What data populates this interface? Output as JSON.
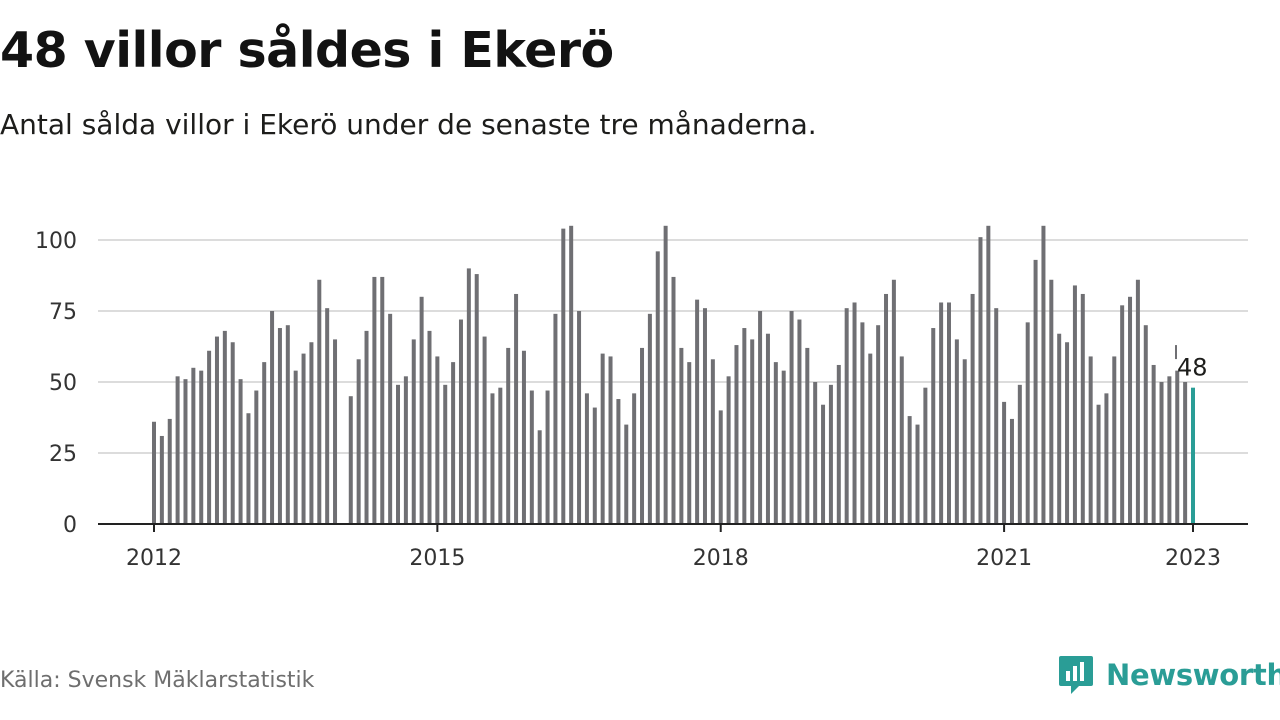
{
  "header": {
    "title": "48 villor såldes i Ekerö",
    "subtitle": "Antal sålda villor i Ekerö under de senaste tre månaderna."
  },
  "footer": {
    "source": "Källa: Svensk Mäklarstatistik",
    "brand": "Newsworthy"
  },
  "colors": {
    "bar": "#6f6f73",
    "highlight": "#2a9d96",
    "grid": "#dcdcdc",
    "axis": "#222222",
    "brand": "#2a9d96"
  },
  "chart_data": {
    "type": "bar",
    "x_start": "2012-01",
    "x_end": "2022-12",
    "x_ticks": [
      "2012",
      "2015",
      "2018",
      "2021",
      "2023"
    ],
    "y_ticks": [
      0,
      25,
      50,
      75,
      100
    ],
    "ylim": [
      0,
      105
    ],
    "grid": true,
    "highlight_label": "48",
    "values": [
      36,
      31,
      37,
      52,
      51,
      55,
      54,
      61,
      66,
      68,
      64,
      51,
      39,
      47,
      57,
      75,
      69,
      70,
      54,
      60,
      64,
      86,
      76,
      65,
      null,
      45,
      58,
      68,
      87,
      87,
      74,
      49,
      52,
      65,
      80,
      68,
      59,
      49,
      57,
      72,
      90,
      88,
      66,
      46,
      48,
      62,
      81,
      61,
      47,
      33,
      47,
      74,
      104,
      105,
      75,
      46,
      41,
      60,
      59,
      44,
      35,
      46,
      62,
      74,
      96,
      105,
      87,
      62,
      57,
      79,
      76,
      58,
      40,
      52,
      63,
      69,
      65,
      75,
      67,
      57,
      54,
      75,
      72,
      62,
      50,
      42,
      49,
      56,
      76,
      78,
      71,
      60,
      70,
      81,
      86,
      59,
      38,
      35,
      48,
      69,
      78,
      78,
      65,
      58,
      81,
      101,
      105,
      76,
      43,
      37,
      49,
      71,
      93,
      105,
      86,
      67,
      64,
      84,
      81,
      59,
      42,
      46,
      59,
      77,
      80,
      86,
      70,
      56,
      50,
      52,
      54,
      50,
      48
    ],
    "highlight_index": 132,
    "connector_value": 63
  }
}
